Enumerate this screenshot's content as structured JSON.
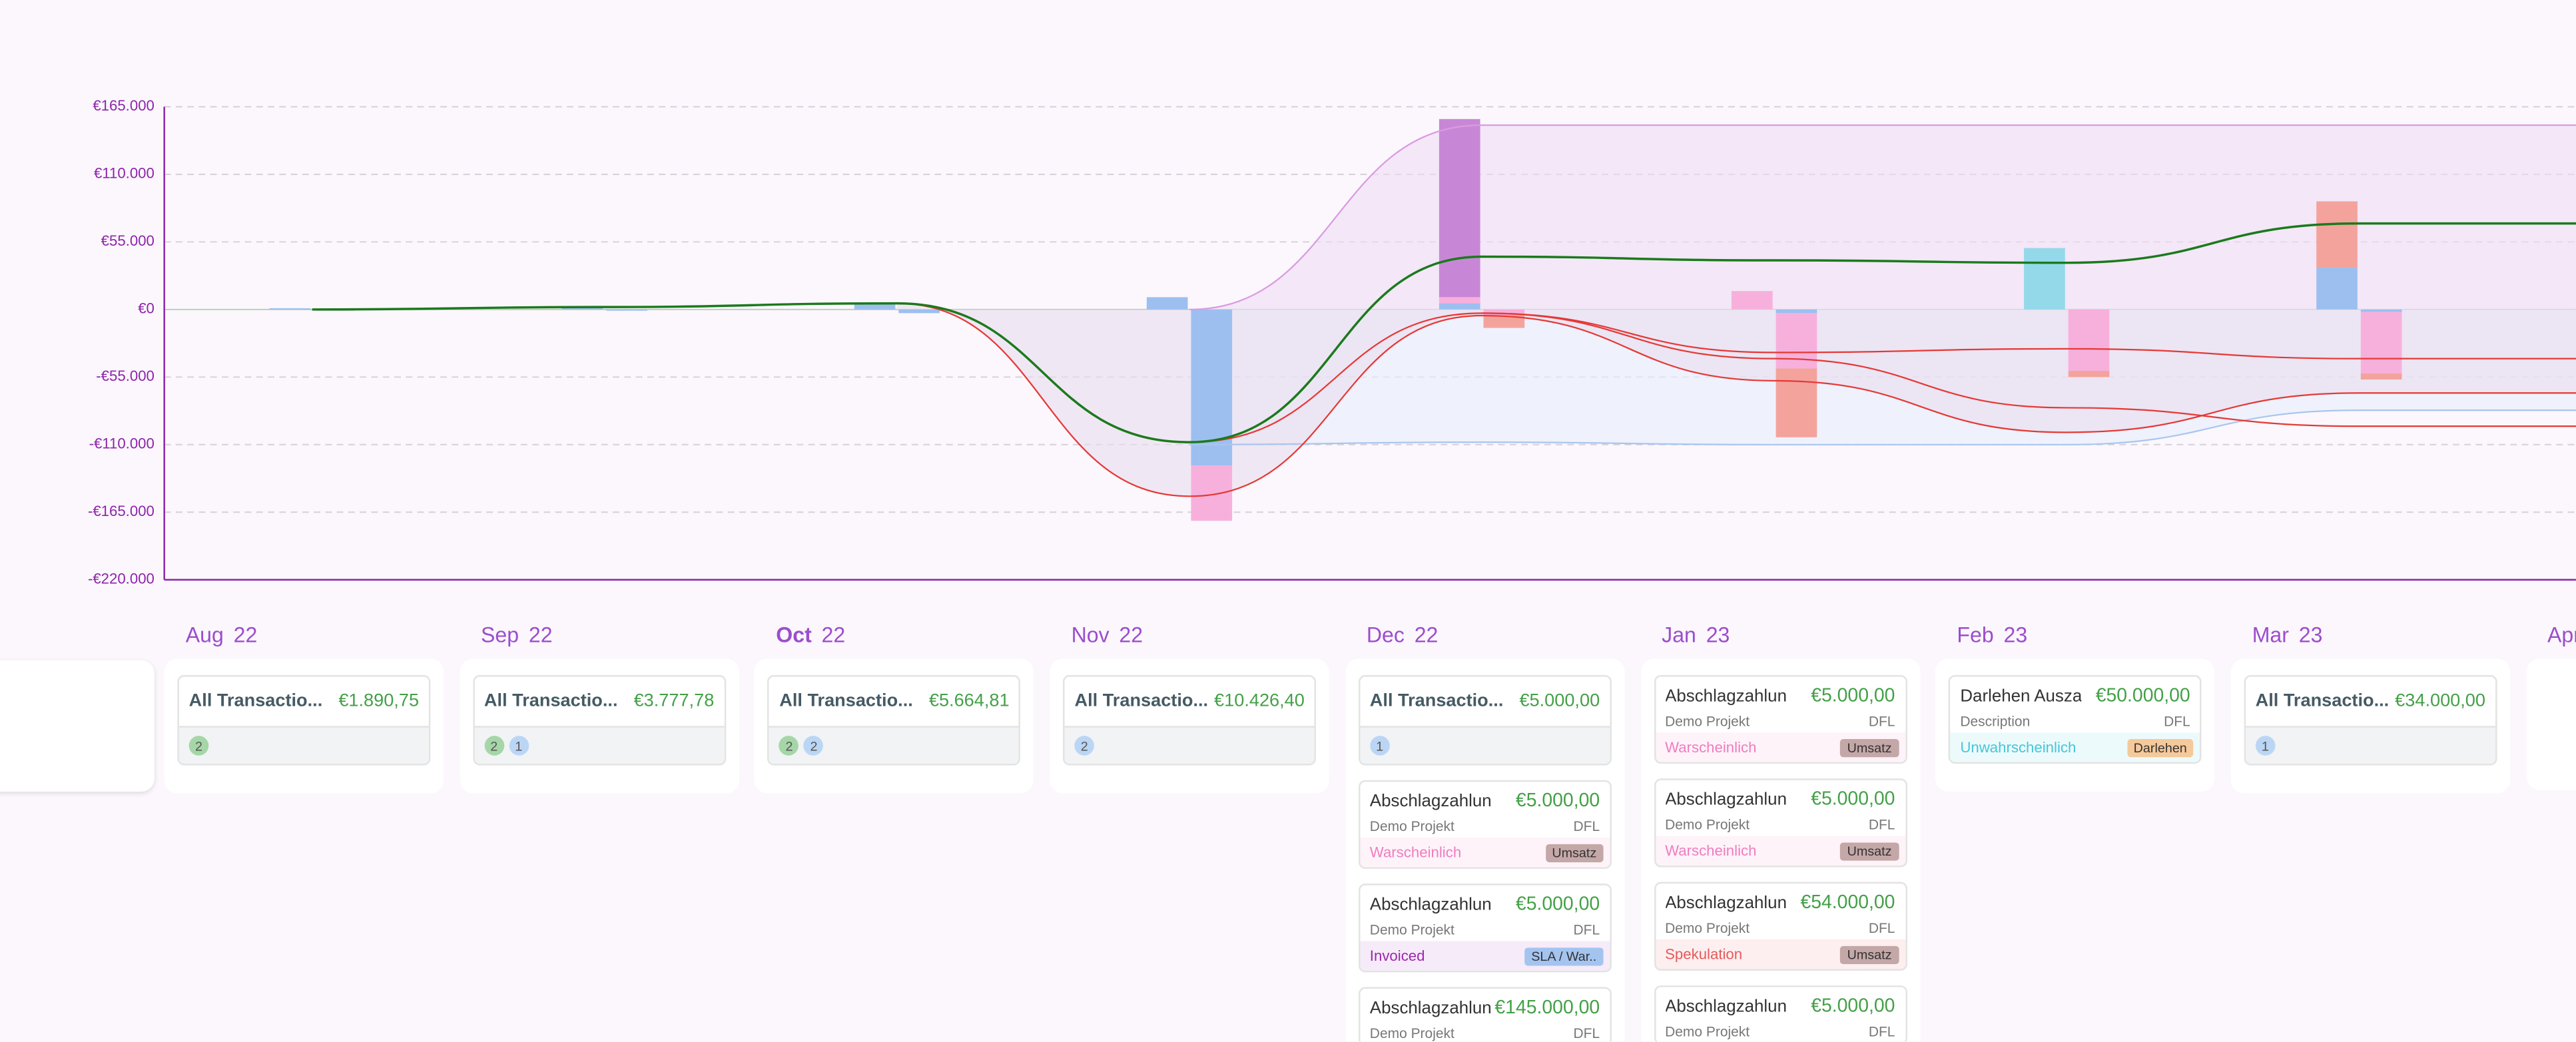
{
  "chart_data": {
    "type": "bar",
    "categories": [
      null,
      null,
      null,
      null,
      null,
      null,
      null,
      null
    ],
    "ylim": [
      -220000,
      165000
    ],
    "yticks": [
      {
        "value": 165000,
        "label": "€165.000"
      },
      {
        "value": 110000,
        "label": "€110.000"
      },
      {
        "value": 55000,
        "label": "€55.000"
      },
      {
        "value": 0,
        "label": "€0"
      },
      {
        "value": -55000,
        "label": "-€55.000"
      },
      {
        "value": -110000,
        "label": "-€110.000"
      },
      {
        "value": -165000,
        "label": "-€165.000"
      },
      {
        "value": -220000,
        "label": "-€220.000"
      }
    ],
    "grid": true,
    "series": [
      {
        "color": "#9dbff0",
        "values": [
          1000,
          2000,
          5000,
          10000,
          5000,
          0,
          0,
          34000
        ]
      },
      {
        "color": "#f7b0dc",
        "values": [
          0,
          0,
          0,
          0,
          5000,
          15000,
          0,
          0
        ]
      },
      {
        "color": "#c887d6",
        "values": [
          0,
          0,
          0,
          0,
          145000,
          0,
          0,
          0
        ]
      },
      {
        "color": "#93d9ea",
        "values": [
          0,
          0,
          0,
          0,
          0,
          0,
          50000,
          0
        ]
      },
      {
        "color": "#f3a39c",
        "values": [
          0,
          0,
          0,
          0,
          0,
          0,
          0,
          54000
        ]
      },
      {
        "color": "#9dbff0",
        "values": [
          -1000,
          -1000,
          -3000,
          -127000,
          0,
          -3000,
          0,
          -2000
        ]
      },
      {
        "color": "#f7b0dc",
        "values": [
          0,
          0,
          0,
          -45000,
          -5000,
          -45000,
          -50000,
          -50000
        ]
      },
      {
        "color": "#f3a39c",
        "values": [
          0,
          0,
          0,
          0,
          -10000,
          -56000,
          -5000,
          -5000
        ]
      }
    ],
    "lines": [
      {
        "color": "#d99be0",
        "fill": "#efdcf5",
        "values": [
          null,
          null,
          null,
          0,
          150000,
          150000,
          150000,
          150000
        ]
      },
      {
        "color": "#a9c6ee",
        "fill": "#e8eefb",
        "values": [
          null,
          null,
          null,
          -110000,
          -108000,
          -110000,
          -110000,
          -82000
        ]
      },
      {
        "color": "#e53935",
        "fill": "#e9dcee",
        "values": [
          null,
          null,
          5000,
          -152000,
          -5000,
          -58000,
          -100000,
          -68000
        ]
      },
      {
        "color": "#e53935",
        "values": [
          null,
          null,
          5000,
          -108000,
          -3000,
          -35000,
          -32000,
          -40000
        ]
      },
      {
        "color": "#e53935",
        "values": [
          null,
          null,
          null,
          null,
          -3000,
          -40000,
          -80000,
          -95000
        ]
      },
      {
        "color": "#1b7a1b",
        "values": [
          0,
          2000,
          5000,
          -108000,
          43000,
          40000,
          38000,
          70000
        ]
      }
    ]
  },
  "columns": [
    {
      "month": "Aug",
      "year": "22",
      "cards": [
        {
          "title": "All Transactio...",
          "amount": "€1.890,75",
          "badges": [
            {
              "count": 2,
              "color": "#a5d6a7"
            }
          ]
        }
      ]
    },
    {
      "month": "Sep",
      "year": "22",
      "cards": [
        {
          "title": "All Transactio...",
          "amount": "€3.777,78",
          "badges": [
            {
              "count": 2,
              "color": "#a5d6a7"
            },
            {
              "count": 1,
              "color": "#bbd6f5"
            }
          ]
        }
      ]
    },
    {
      "month": "Oct",
      "year": "22",
      "current": true,
      "cards": [
        {
          "title": "All Transactio...",
          "amount": "€5.664,81",
          "badges": [
            {
              "count": 2,
              "color": "#a5d6a7"
            },
            {
              "count": 2,
              "color": "#bbd6f5"
            }
          ]
        }
      ]
    },
    {
      "month": "Nov",
      "year": "22",
      "cards": [
        {
          "title": "All Transactio...",
          "amount": "€10.426,40",
          "badges": [
            {
              "count": 2,
              "color": "#bbd6f5"
            }
          ]
        }
      ]
    },
    {
      "month": "Dec",
      "year": "22",
      "cards": [
        {
          "title": "All Transactio...",
          "amount": "€5.000,00",
          "badges": [
            {
              "count": 1,
              "color": "#bbd6f5"
            }
          ]
        },
        {
          "title": "Abschlagzahlun",
          "amount": "€5.000,00",
          "project": "Demo Projekt",
          "code": "DFL",
          "status": "Warscheinlich",
          "statusColor": "#f07cc0",
          "tag": "Umsatz",
          "tagColor": "#c4a7a7"
        },
        {
          "title": "Abschlagzahlun",
          "amount": "€5.000,00",
          "project": "Demo Projekt",
          "code": "DFL",
          "status": "Invoiced",
          "statusColor": "#9c27b0",
          "tag": "SLA / War..",
          "tagColor": "#a4c4f0"
        },
        {
          "title": "Abschlagzahlun",
          "amount": "€145.000,00",
          "project": "Demo Projekt",
          "code": "DFL"
        }
      ]
    },
    {
      "month": "Jan",
      "year": "23",
      "cards": [
        {
          "title": "Abschlagzahlun",
          "amount": "€5.000,00",
          "project": "Demo Projekt",
          "code": "DFL",
          "status": "Warscheinlich",
          "statusColor": "#f07cc0",
          "tag": "Umsatz",
          "tagColor": "#c4a7a7"
        },
        {
          "title": "Abschlagzahlun",
          "amount": "€5.000,00",
          "project": "Demo Projekt",
          "code": "DFL",
          "status": "Warscheinlich",
          "statusColor": "#f07cc0",
          "tag": "Umsatz",
          "tagColor": "#c4a7a7"
        },
        {
          "title": "Abschlagzahlun",
          "amount": "€54.000,00",
          "project": "Demo Projekt",
          "code": "DFL",
          "status": "Spekulation",
          "statusColor": "#e55a5a",
          "tag": "Umsatz",
          "tagColor": "#c4a7a7"
        },
        {
          "title": "Abschlagzahlun",
          "amount": "€5.000,00",
          "project": "Demo Projekt",
          "code": "DFL"
        }
      ]
    },
    {
      "month": "Feb",
      "year": "23",
      "cards": [
        {
          "title": "Darlehen Ausza",
          "amount": "€50.000,00",
          "project": "Description",
          "code": "DFL",
          "status": "Unwahrscheinlich",
          "statusColor": "#45c6d9",
          "tag": "Darlehen",
          "tagColor": "#f5c99a"
        }
      ]
    },
    {
      "month": "Mar",
      "year": "23",
      "cards": [
        {
          "title": "All Transactio...",
          "amount": "€34.000,00",
          "badges": [
            {
              "count": 1,
              "color": "#bbd6f5"
            }
          ]
        }
      ]
    },
    {
      "month": "Apr",
      "cards": []
    }
  ]
}
